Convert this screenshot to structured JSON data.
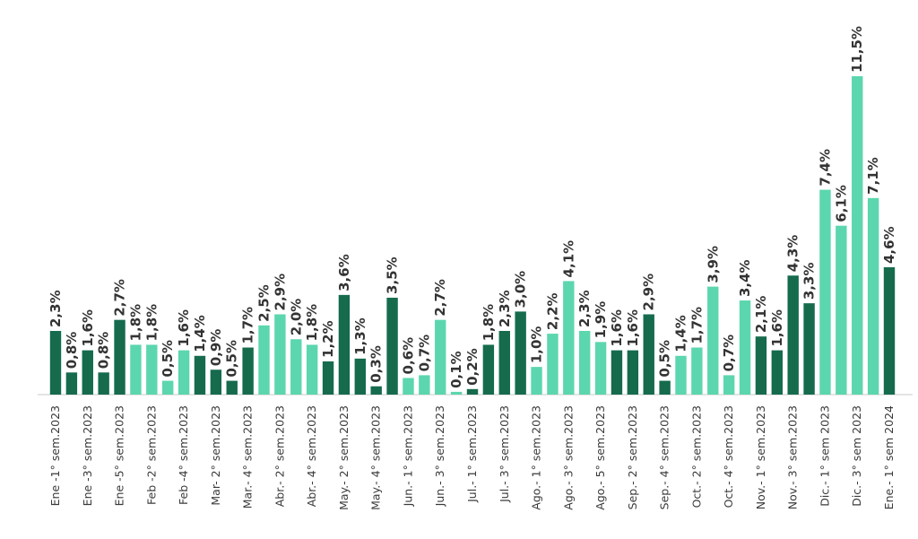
{
  "chart_data": {
    "type": "bar",
    "title": "",
    "xlabel": "",
    "ylabel": "",
    "ylim": [
      0,
      11.5
    ],
    "grid": false,
    "legend": "none",
    "colors": {
      "dark": "#166b4d",
      "light": "#5cd6ae",
      "baseline": "#c8c8c8"
    },
    "categories": [
      "Ene -1° sem.2023",
      "",
      "Ene -3° sem.2023",
      "",
      "Ene -5° sem.2023",
      "",
      "Feb -2° sem.2023",
      "",
      "Feb -4° sem.2023",
      "",
      "Mar- 2° sem.2023",
      "",
      "Mar.- 4° sem.2023",
      "",
      "Abr.- 2° sem.2023",
      "",
      "Abr.- 4° sem.2023",
      "",
      "May.- 2° sem.2023",
      "",
      "May.- 4° sem.2023",
      "",
      "Jun.- 1° sem.2023",
      "",
      "Jun.- 3° sem.2023",
      "",
      "Jul.- 1° sem.2023",
      "",
      "Jul.- 3° sem.2023",
      "",
      "Ago.- 1° sem.2023",
      "",
      "Ago.- 3° sem.2023",
      "",
      "Ago.- 5° sem.2023",
      "",
      "Sep.- 2° sem.2023",
      "",
      "Sep.- 4° sem.2023",
      "",
      "Oct.- 2° sem.2023",
      "",
      "Oct.- 4° sem.2023",
      "",
      "Nov.- 1° sem.2023",
      "",
      "Nov.- 3° sem.2023",
      "",
      "Dic.- 1° sem 2023",
      "",
      "Dic.- 3° sem 2023",
      "",
      "Ene.- 1° sem 2024"
    ],
    "values": [
      2.3,
      0.8,
      1.6,
      0.8,
      2.7,
      1.8,
      1.8,
      0.5,
      1.6,
      1.4,
      0.9,
      0.5,
      1.7,
      2.5,
      2.9,
      2.0,
      1.8,
      1.2,
      3.6,
      1.3,
      0.3,
      3.5,
      0.6,
      0.7,
      2.7,
      0.1,
      0.2,
      1.8,
      2.3,
      3.0,
      1.0,
      2.2,
      4.1,
      2.3,
      1.9,
      1.6,
      1.6,
      2.9,
      0.5,
      1.4,
      1.7,
      3.9,
      0.7,
      3.4,
      2.1,
      1.6,
      4.3,
      3.3,
      7.4,
      6.1,
      11.5,
      7.1,
      4.6
    ],
    "value_labels": [
      "2,3%",
      "0,8%",
      "1,6%",
      "0,8%",
      "2,7%",
      "1,8%",
      "1,8%",
      "0,5%",
      "1,6%",
      "1,4%",
      "0,9%",
      "0,5%",
      "1,7%",
      "2,5%",
      "2,9%",
      "2,0%",
      "1,8%",
      "1,2%",
      "3,6%",
      "1,3%",
      "0,3%",
      "3,5%",
      "0,6%",
      "0,7%",
      "2,7%",
      "0,1%",
      "0,2%",
      "1,8%",
      "2,3%",
      "3,0%",
      "1,0%",
      "2,2%",
      "4,1%",
      "2,3%",
      "1,9%",
      "1,6%",
      "1,6%",
      "2,9%",
      "0,5%",
      "1,4%",
      "1,7%",
      "3,9%",
      "0,7%",
      "3,4%",
      "2,1%",
      "1,6%",
      "4,3%",
      "3,3%",
      "7,4%",
      "6,1%",
      "11,5%",
      "7,1%",
      "4,6%"
    ],
    "bar_colors": [
      "dark",
      "dark",
      "dark",
      "dark",
      "dark",
      "light",
      "light",
      "light",
      "light",
      "dark",
      "dark",
      "dark",
      "dark",
      "light",
      "light",
      "light",
      "light",
      "dark",
      "dark",
      "dark",
      "dark",
      "dark",
      "light",
      "light",
      "light",
      "light",
      "dark",
      "dark",
      "dark",
      "dark",
      "light",
      "light",
      "light",
      "light",
      "light",
      "dark",
      "dark",
      "dark",
      "dark",
      "light",
      "light",
      "light",
      "light",
      "light",
      "dark",
      "dark",
      "dark",
      "dark",
      "light",
      "light",
      "light",
      "light",
      "dark"
    ]
  }
}
